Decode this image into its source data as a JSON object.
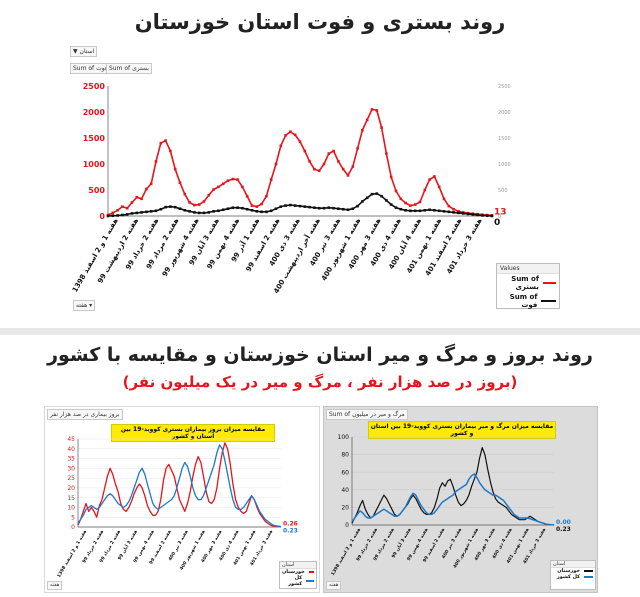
{
  "top": {
    "title": "روند بستری و فوت استان خوزستان",
    "filter_label": "استان",
    "tab_sum_death": "Sum of فوت",
    "tab_sum_hosp": "Sum of بستری",
    "legend_title": "Values",
    "legend_series": [
      "Sum of بستری",
      "Sum of فوت"
    ],
    "filter_bottom": "هفته"
  },
  "bottom": {
    "title": "روند بروز و مرگ و میر استان خوزستان و مقایسه با کشور",
    "subtitle": "(بروز در صد هزار نفر ، مرگ و میر در یک میلیون نفر)",
    "left_header": "بروز بیماری در صد هزار نفر",
    "right_header": "Sum of مرگ و میر در میلیون",
    "legend_head": "استان",
    "legend_series": [
      "خوزستان",
      "کل کشور"
    ],
    "filter_bottom": "هفته"
  },
  "colors": {
    "hosp": "#e8141b",
    "death": "#111111",
    "khuzestan_bottom_left": "#e8141b",
    "country": "#1f78c8",
    "khuzestan_bottom_right": "#111111",
    "chart_title_bg": "#ffea00"
  },
  "chart_data": [
    {
      "type": "line",
      "title": "",
      "xlabel": "",
      "ylabel": "",
      "ylim": [
        0,
        2500
      ],
      "yticks": [
        0,
        500,
        1000,
        1500,
        2000,
        2500
      ],
      "y2ticks": [
        0,
        500,
        1000,
        1500,
        2000,
        2500
      ],
      "x_tick_labels": [
        "هفته 1 و 2 اسفند 1398",
        "هفته 2 اردیبهشت 99",
        "هفته 2 خرداد 99",
        "هفته 2 مرداد 99",
        "هفته 4 شهریور 99",
        "هفته 3 آبان 99",
        "هفته 4 بهمن 99",
        "هفته 1 آذر 99",
        "هفته 2 اسفند 99",
        "هفته 3 دی 400",
        "هفته آخر اردیبهشت 400",
        "هفته 3 تیر 400",
        "هفته 1 شهریور 400",
        "هفته 3 مهر 400",
        "هفته 4 دی 400",
        "هفته 4 آبان 400",
        "هفته 1 بهمن 401",
        "هفته 2 اسفند 401",
        "هفته 3 خرداد 401"
      ],
      "series": [
        {
          "name": "Sum of بستری",
          "end_label": "13",
          "values": [
            20,
            60,
            110,
            180,
            150,
            260,
            360,
            330,
            520,
            620,
            1050,
            1400,
            1450,
            1250,
            900,
            640,
            420,
            260,
            210,
            220,
            280,
            400,
            510,
            560,
            620,
            680,
            710,
            700,
            560,
            380,
            200,
            180,
            230,
            380,
            700,
            1000,
            1350,
            1550,
            1620,
            1560,
            1430,
            1250,
            1050,
            900,
            870,
            1000,
            1200,
            1250,
            1050,
            900,
            780,
            950,
            1300,
            1650,
            1850,
            2050,
            2030,
            1700,
            1200,
            750,
            480,
            330,
            250,
            200,
            220,
            270,
            500,
            700,
            760,
            560,
            330,
            190,
            130,
            90,
            70,
            55,
            45,
            35,
            25,
            18,
            13
          ]
        },
        {
          "name": "Sum of فوت",
          "end_label": "0",
          "values": [
            0,
            5,
            10,
            20,
            30,
            50,
            60,
            70,
            80,
            90,
            100,
            130,
            170,
            180,
            170,
            140,
            110,
            90,
            70,
            60,
            60,
            70,
            90,
            100,
            120,
            140,
            160,
            160,
            150,
            130,
            110,
            90,
            80,
            80,
            100,
            140,
            180,
            200,
            210,
            200,
            190,
            180,
            170,
            160,
            150,
            150,
            160,
            150,
            140,
            130,
            120,
            140,
            190,
            280,
            350,
            420,
            430,
            380,
            300,
            220,
            160,
            130,
            110,
            100,
            100,
            100,
            110,
            120,
            110,
            100,
            90,
            80,
            70,
            60,
            50,
            40,
            30,
            20,
            10,
            5,
            0
          ]
        }
      ]
    },
    {
      "type": "line",
      "title": "مقایسه میزان بروز بیماران بستری کووید-19 بین استان و کشور",
      "xlabel": "",
      "ylabel": "",
      "ylim": [
        0,
        45
      ],
      "yticks": [
        0,
        5,
        10,
        15,
        20,
        25,
        30,
        35,
        40,
        45
      ],
      "x_tick_labels": [
        "هفته 1 و 2 اسفند 1398",
        "هفته 2 خرداد 99",
        "هفته 2 مرداد 99",
        "هفته 3 آبان 99",
        "هفته 4 بهمن 99",
        "هفته 2 اسفند 99",
        "هفته 3 تیر 400",
        "هفته 1 شهریور 400",
        "هفته 3 مهر 400",
        "هفته 4 دی 400",
        "هفته 1 بهمن 401",
        "هفته 3 خرداد 401"
      ],
      "series": [
        {
          "name": "خوزستان",
          "end_label": "0.26",
          "values": [
            1,
            4,
            8,
            12,
            8,
            10,
            8,
            5,
            11,
            14,
            20,
            26,
            30,
            27,
            22,
            18,
            12,
            9,
            8,
            10,
            13,
            17,
            20,
            22,
            20,
            16,
            11,
            8,
            6,
            6,
            8,
            14,
            24,
            30,
            32,
            29,
            26,
            20,
            14,
            11,
            8,
            12,
            18,
            26,
            32,
            36,
            33,
            26,
            18,
            13,
            12,
            14,
            20,
            30,
            38,
            43,
            40,
            32,
            22,
            14,
            10,
            8,
            7,
            8,
            12,
            16,
            14,
            10,
            7,
            5,
            3,
            2,
            1,
            0.5,
            0.4,
            0.3,
            0.26
          ]
        },
        {
          "name": "کل کشور",
          "end_label": "0.23",
          "values": [
            2,
            4,
            6,
            9,
            10,
            11,
            10,
            9,
            10,
            12,
            14,
            16,
            17,
            16,
            14,
            12,
            11,
            10,
            11,
            13,
            16,
            20,
            24,
            28,
            30,
            27,
            22,
            17,
            12,
            10,
            9,
            10,
            11,
            12,
            13,
            14,
            16,
            20,
            25,
            30,
            33,
            31,
            26,
            20,
            16,
            14,
            14,
            16,
            20,
            24,
            28,
            32,
            38,
            42,
            40,
            34,
            27,
            20,
            14,
            10,
            9,
            9,
            10,
            12,
            14,
            16,
            14,
            11,
            8,
            6,
            4,
            3,
            2,
            1,
            0.6,
            0.4,
            0.23
          ]
        }
      ]
    },
    {
      "type": "line",
      "title": "مقایسه میزان مرگ و میر بیماران بستری کووید-19 بین استان و کشور",
      "xlabel": "",
      "ylabel": "",
      "ylim": [
        0,
        100
      ],
      "yticks": [
        0,
        20,
        40,
        60,
        80,
        100
      ],
      "x_tick_labels": [
        "هفته 1 و 2 اسفند 1398",
        "هفته 2 خرداد 99",
        "هفته 2 مرداد 99",
        "هفته 3 آبان 99",
        "هفته 4 بهمن 99",
        "هفته 2 اسفند 99",
        "هفته 3 تیر 400",
        "هفته 1 شهریور 400",
        "هفته 3 مهر 400",
        "هفته 4 دی 400",
        "هفته 1 بهمن 401",
        "هفته 3 خرداد 401"
      ],
      "series": [
        {
          "name": "خوزستان",
          "end_label": "0.00",
          "values": [
            2,
            8,
            14,
            22,
            28,
            18,
            12,
            8,
            10,
            16,
            22,
            28,
            34,
            30,
            24,
            18,
            12,
            10,
            12,
            16,
            20,
            24,
            30,
            34,
            30,
            24,
            18,
            14,
            12,
            12,
            14,
            20,
            30,
            42,
            48,
            44,
            50,
            52,
            44,
            34,
            26,
            22,
            24,
            28,
            34,
            44,
            52,
            60,
            76,
            88,
            80,
            64,
            50,
            38,
            30,
            26,
            24,
            22,
            20,
            16,
            12,
            10,
            8,
            6,
            6,
            6,
            8,
            10,
            8,
            6,
            4,
            3,
            2,
            1,
            0.5,
            0.2,
            0.0
          ]
        },
        {
          "name": "کل کشور",
          "end_label": "0.23",
          "values": [
            4,
            8,
            12,
            16,
            14,
            10,
            8,
            8,
            10,
            12,
            14,
            16,
            18,
            16,
            14,
            12,
            10,
            10,
            12,
            16,
            20,
            26,
            32,
            36,
            34,
            28,
            22,
            18,
            14,
            12,
            12,
            14,
            18,
            22,
            26,
            28,
            30,
            32,
            34,
            38,
            40,
            42,
            44,
            46,
            52,
            56,
            58,
            54,
            48,
            44,
            40,
            38,
            36,
            34,
            34,
            32,
            30,
            28,
            24,
            20,
            16,
            12,
            10,
            8,
            8,
            8,
            8,
            7,
            6,
            5,
            4,
            3,
            2,
            1,
            0.6,
            0.3,
            0.23
          ]
        }
      ]
    }
  ]
}
